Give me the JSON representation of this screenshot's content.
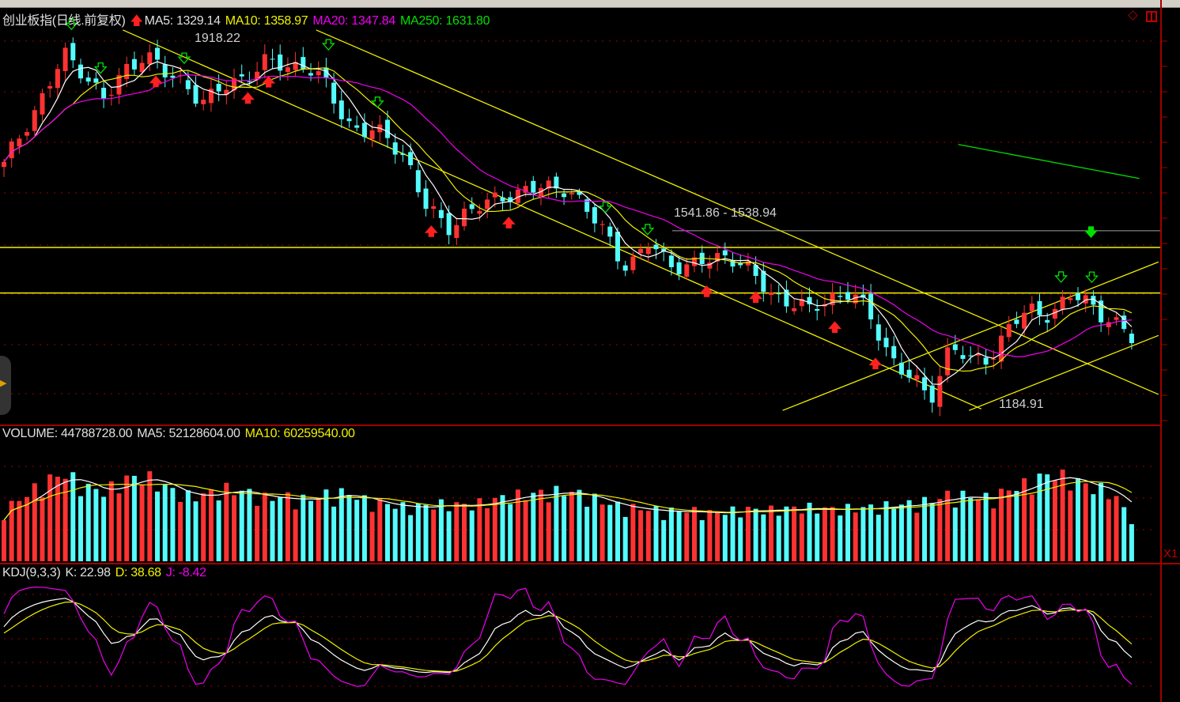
{
  "header": {
    "title": "创业板指(日线.前复权)",
    "ma5": "MA5: 1329.14",
    "ma10": "MA10: 1358.97",
    "ma20": "MA20: 1347.84",
    "ma250": "MA250: 1631.80"
  },
  "volume_header": {
    "volume": "VOLUME: 44788728.00",
    "ma5": "MA5: 52128604.00",
    "ma10": "MA10: 60259540.00"
  },
  "kdj_header": {
    "name": "KDJ(9,3,3)",
    "k": "K: 22.98",
    "d": "D: 38.68",
    "j": "J: -8.42"
  },
  "annotations": {
    "high": "1918.22",
    "low": "1184.91",
    "range": "1541.86 - 1538.94"
  },
  "right_axis": {
    "volume_unit": "X1"
  },
  "colors": {
    "up": "#ff3232",
    "down": "#54fcfc",
    "ma5": "#ffffff",
    "ma10": "#f0f000",
    "ma20": "#f000f0",
    "ma250": "#00e000",
    "grid": "#a00000",
    "trendline": "#f0f000"
  },
  "chart_data": {
    "type": "candlestick",
    "bars": 148,
    "ylim": [
      1148,
      1975
    ],
    "close_keypoints": [
      1662,
      1741,
      1804,
      1883,
      1852,
      1789,
      1852,
      1891,
      1844,
      1828,
      1789,
      1820,
      1844,
      1868,
      1860,
      1868,
      1820,
      1749,
      1733,
      1718,
      1678,
      1575,
      1536,
      1575,
      1583,
      1607,
      1615,
      1615,
      1623,
      1567,
      1520,
      1457,
      1504,
      1473,
      1457,
      1473,
      1488,
      1449,
      1409,
      1393,
      1370,
      1401,
      1409,
      1362,
      1283,
      1236,
      1196,
      1307,
      1267,
      1283,
      1346,
      1370,
      1370,
      1401,
      1385,
      1354,
      1314
    ],
    "volume_keypoints_millions": [
      55,
      70,
      85,
      95,
      80,
      75,
      88,
      92,
      80,
      70,
      72,
      78,
      75,
      68,
      70,
      66,
      72,
      74,
      65,
      62,
      58,
      60,
      62,
      60,
      64,
      70,
      72,
      74,
      76,
      70,
      62,
      58,
      56,
      54,
      55,
      52,
      54,
      56,
      55,
      57,
      58,
      56,
      57,
      58,
      60,
      62,
      65,
      72,
      70,
      68,
      78,
      85,
      95,
      88,
      80,
      75,
      45
    ],
    "horizontal_lines": [
      1499,
      1408
    ],
    "range_line": 1541.86,
    "trendlines": [
      {
        "from": [
          15.5,
          1934
        ],
        "to": [
          127.4,
          1176
        ]
      },
      {
        "from": [
          40.7,
          1934
        ],
        "to": [
          150.5,
          1205
        ]
      },
      {
        "from": [
          101.5,
          1173
        ],
        "to": [
          150.5,
          1470
        ]
      },
      {
        "from": [
          125.8,
          1173
        ],
        "to": [
          150.5,
          1323
        ]
      }
    ],
    "ma250_segment": {
      "from": [
        124.4,
        1705
      ],
      "to": [
        148,
        1637
      ]
    },
    "signals_down": [
      8.8,
      12.6,
      23.5,
      42.3,
      48.7,
      78.4,
      83.9,
      137.8,
      141.8
    ],
    "signals_up": [
      19.8,
      31.8,
      34.5,
      55.7,
      65.8,
      91.6,
      98,
      108.3,
      113.6
    ],
    "signal_strong_down": 141.7
  }
}
